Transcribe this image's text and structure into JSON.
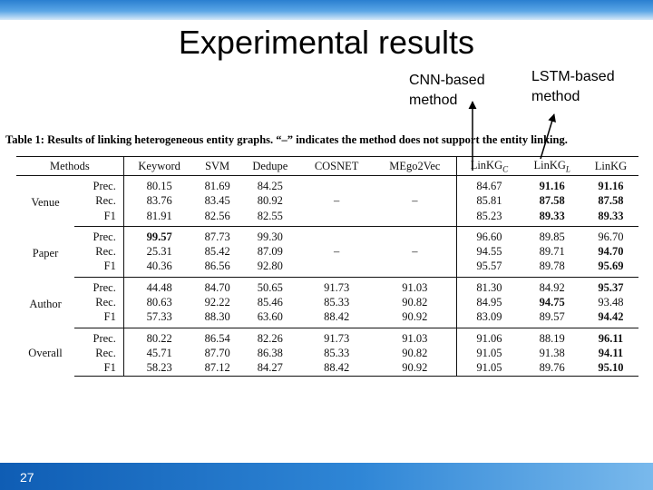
{
  "slide": {
    "title": "Experimental results",
    "page_number": "27",
    "annotation_cnn": "CNN-based\nmethod",
    "annotation_lstm": "LSTM-based\nmethod"
  },
  "table": {
    "caption": "Table 1: Results of linking heterogeneous entity graphs. “–” indicates the method does not support the entity linking.",
    "headers": {
      "methods": "Methods",
      "keyword": "Keyword",
      "svm": "SVM",
      "dedupe": "Dedupe",
      "cosnet": "COSNET",
      "mego2vec": "MEgo2Vec",
      "linkkg_c_base": "LinKG",
      "linkkg_c_sub": "C",
      "linkkg_l_base": "LinKG",
      "linkkg_l_sub": "L",
      "linkkg": "LinKG"
    },
    "groups": [
      {
        "name": "Venue",
        "rows": [
          {
            "metric": "Prec.",
            "keyword": "80.15",
            "svm": "81.69",
            "dedupe": "84.25",
            "cosnet": "",
            "mego2vec": "",
            "linkkg_c": "84.67",
            "linkkg_l": "91.16",
            "linkkg": "91.16"
          },
          {
            "metric": "Rec.",
            "keyword": "83.76",
            "svm": "83.45",
            "dedupe": "80.92",
            "cosnet": "–",
            "mego2vec": "–",
            "linkkg_c": "85.81",
            "linkkg_l": "87.58",
            "linkkg": "87.58"
          },
          {
            "metric": "F1",
            "keyword": "81.91",
            "svm": "82.56",
            "dedupe": "82.55",
            "cosnet": "",
            "mego2vec": "",
            "linkkg_c": "85.23",
            "linkkg_l": "89.33",
            "linkkg": "89.33"
          }
        ]
      },
      {
        "name": "Paper",
        "rows": [
          {
            "metric": "Prec.",
            "keyword": "99.57",
            "svm": "87.73",
            "dedupe": "99.30",
            "cosnet": "",
            "mego2vec": "",
            "linkkg_c": "96.60",
            "linkkg_l": "89.85",
            "linkkg": "96.70"
          },
          {
            "metric": "Rec.",
            "keyword": "25.31",
            "svm": "85.42",
            "dedupe": "87.09",
            "cosnet": "–",
            "mego2vec": "–",
            "linkkg_c": "94.55",
            "linkkg_l": "89.71",
            "linkkg": "94.70"
          },
          {
            "metric": "F1",
            "keyword": "40.36",
            "svm": "86.56",
            "dedupe": "92.80",
            "cosnet": "",
            "mego2vec": "",
            "linkkg_c": "95.57",
            "linkkg_l": "89.78",
            "linkkg": "95.69"
          }
        ]
      },
      {
        "name": "Author",
        "rows": [
          {
            "metric": "Prec.",
            "keyword": "44.48",
            "svm": "84.70",
            "dedupe": "50.65",
            "cosnet": "91.73",
            "mego2vec": "91.03",
            "linkkg_c": "81.30",
            "linkkg_l": "84.92",
            "linkkg": "95.37"
          },
          {
            "metric": "Rec.",
            "keyword": "80.63",
            "svm": "92.22",
            "dedupe": "85.46",
            "cosnet": "85.33",
            "mego2vec": "90.82",
            "linkkg_c": "84.95",
            "linkkg_l": "94.75",
            "linkkg": "93.48"
          },
          {
            "metric": "F1",
            "keyword": "57.33",
            "svm": "88.30",
            "dedupe": "63.60",
            "cosnet": "88.42",
            "mego2vec": "90.92",
            "linkkg_c": "83.09",
            "linkkg_l": "89.57",
            "linkkg": "94.42"
          }
        ]
      },
      {
        "name": "Overall",
        "rows": [
          {
            "metric": "Prec.",
            "keyword": "80.22",
            "svm": "86.54",
            "dedupe": "82.26",
            "cosnet": "91.73",
            "mego2vec": "91.03",
            "linkkg_c": "91.06",
            "linkkg_l": "88.19",
            "linkkg": "96.11"
          },
          {
            "metric": "Rec.",
            "keyword": "45.71",
            "svm": "87.70",
            "dedupe": "86.38",
            "cosnet": "85.33",
            "mego2vec": "90.82",
            "linkkg_c": "91.05",
            "linkkg_l": "91.38",
            "linkkg": "94.11"
          },
          {
            "metric": "F1",
            "keyword": "58.23",
            "svm": "87.12",
            "dedupe": "84.27",
            "cosnet": "88.42",
            "mego2vec": "90.92",
            "linkkg_c": "91.05",
            "linkkg_l": "89.76",
            "linkkg": "95.10"
          }
        ]
      }
    ],
    "bold_cells": [
      "0.0.linkkg_l",
      "0.0.linkkg",
      "0.1.linkkg_l",
      "0.1.linkkg",
      "0.2.linkkg_l",
      "0.2.linkkg",
      "1.0.keyword",
      "1.1.linkkg",
      "1.2.linkkg",
      "2.0.linkkg",
      "2.1.linkkg_l",
      "2.2.linkkg",
      "3.0.linkkg",
      "3.1.linkkg",
      "3.2.linkkg"
    ]
  }
}
